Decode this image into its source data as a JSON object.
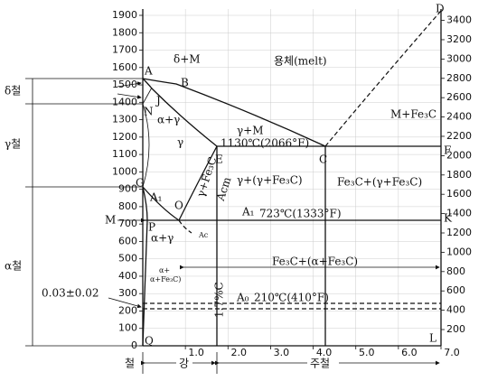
{
  "y_left": {
    "ylim": [
      0,
      1900
    ],
    "ticks": [
      0,
      100,
      200,
      300,
      400,
      500,
      600,
      700,
      800,
      900,
      1000,
      1100,
      1200,
      1300,
      1400,
      1500,
      1600,
      1700,
      1800,
      1900
    ]
  },
  "y_right": {
    "ylim": [
      32,
      3452
    ],
    "ticks": [
      200,
      400,
      600,
      800,
      1000,
      1200,
      1400,
      1600,
      1800,
      2000,
      2200,
      2400,
      2600,
      2800,
      3000,
      3200,
      3400
    ]
  },
  "x": {
    "xlim": [
      0,
      7
    ],
    "ticks": [
      {
        "value": 1,
        "label": "1.0"
      },
      {
        "value": 2,
        "label": "2.0"
      },
      {
        "value": 3,
        "label": "3.0"
      },
      {
        "value": 4,
        "label": "4.0"
      },
      {
        "value": 5,
        "label": "5.0"
      },
      {
        "value": 6,
        "label": "6.0"
      },
      {
        "value": 7,
        "label": "7.0"
      }
    ]
  },
  "labels": [
    "δ+M",
    "용체(melt)",
    "A",
    "B",
    "J",
    "N",
    "α+γ",
    "γ+M",
    "M+Fe₃C",
    "γ",
    "1130℃(2066°F)",
    "E",
    "C",
    "F",
    "G",
    "γ+(γ+Fe₃C)",
    "Fe₃C+(γ+Fe₃C)",
    "A₁",
    "Acm",
    "γ+Fe₃C",
    "O",
    "M",
    "P",
    "A₁",
    "723℃(1333°F)",
    "K",
    "Ac",
    "α+γ",
    "α+",
    "α+Fe₃C)",
    "Fe₃C+(α+Fe₃C)",
    "0.03±0.02",
    "A₀",
    "210℃(410°F)",
    "1.7%C",
    "Q",
    "L",
    "D",
    "δ철",
    "γ철",
    "α철",
    "철",
    "강",
    "주철"
  ]
}
